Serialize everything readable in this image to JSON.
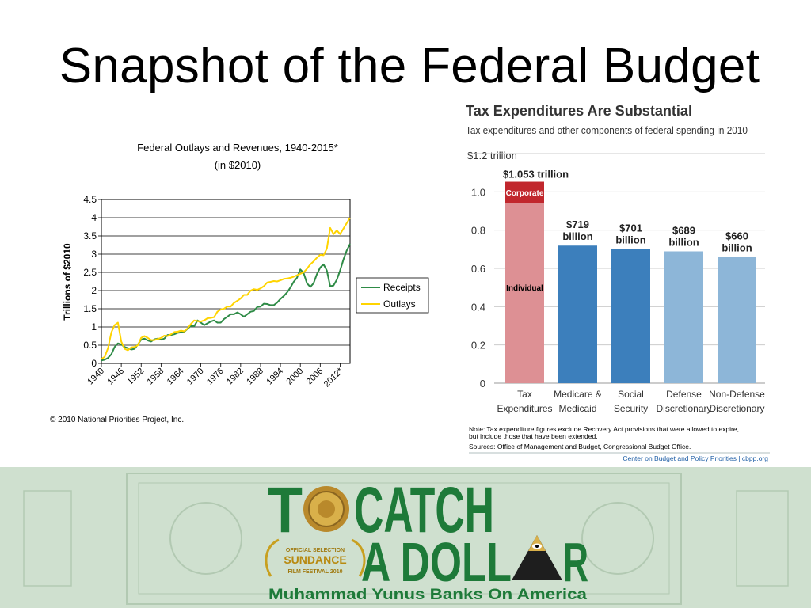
{
  "slide": {
    "title": "Snapshot of the Federal Budget"
  },
  "chart_data": [
    {
      "type": "line",
      "title": "Federal Outlays and Revenues, 1940-2015*",
      "subtitle": "(in $2010)",
      "xlabel": "",
      "ylabel": "Trillions of $2010",
      "ylim": [
        0,
        4.5
      ],
      "yticks": [
        "0",
        "0.5",
        "1",
        "1.5",
        "2",
        "2.5",
        "3",
        "3.5",
        "4",
        "4.5"
      ],
      "xticks": [
        "1940",
        "1946",
        "1952",
        "1958",
        "1964",
        "1970",
        "1976",
        "1982",
        "1988",
        "1994",
        "2000",
        "2006",
        "2012*"
      ],
      "grid": true,
      "legend": "right",
      "copyright": "© 2010 National Priorities Project, Inc.",
      "series": [
        {
          "name": "Receipts",
          "color": "#2e8b46",
          "points": [
            [
              1940,
              0.08
            ],
            [
              1941,
              0.1
            ],
            [
              1942,
              0.15
            ],
            [
              1943,
              0.25
            ],
            [
              1944,
              0.45
            ],
            [
              1945,
              0.55
            ],
            [
              1946,
              0.52
            ],
            [
              1947,
              0.45
            ],
            [
              1948,
              0.42
            ],
            [
              1949,
              0.38
            ],
            [
              1950,
              0.4
            ],
            [
              1951,
              0.52
            ],
            [
              1952,
              0.65
            ],
            [
              1953,
              0.68
            ],
            [
              1954,
              0.63
            ],
            [
              1955,
              0.6
            ],
            [
              1956,
              0.66
            ],
            [
              1957,
              0.68
            ],
            [
              1958,
              0.65
            ],
            [
              1959,
              0.68
            ],
            [
              1960,
              0.78
            ],
            [
              1961,
              0.78
            ],
            [
              1962,
              0.8
            ],
            [
              1963,
              0.84
            ],
            [
              1964,
              0.85
            ],
            [
              1965,
              0.87
            ],
            [
              1966,
              0.95
            ],
            [
              1967,
              1.03
            ],
            [
              1968,
              1.02
            ],
            [
              1969,
              1.18
            ],
            [
              1970,
              1.12
            ],
            [
              1971,
              1.05
            ],
            [
              1972,
              1.1
            ],
            [
              1973,
              1.15
            ],
            [
              1974,
              1.18
            ],
            [
              1975,
              1.12
            ],
            [
              1976,
              1.12
            ],
            [
              1977,
              1.22
            ],
            [
              1978,
              1.28
            ],
            [
              1979,
              1.35
            ],
            [
              1980,
              1.35
            ],
            [
              1981,
              1.4
            ],
            [
              1982,
              1.35
            ],
            [
              1983,
              1.28
            ],
            [
              1984,
              1.35
            ],
            [
              1985,
              1.42
            ],
            [
              1986,
              1.44
            ],
            [
              1987,
              1.55
            ],
            [
              1988,
              1.56
            ],
            [
              1989,
              1.64
            ],
            [
              1990,
              1.63
            ],
            [
              1991,
              1.6
            ],
            [
              1992,
              1.6
            ],
            [
              1993,
              1.67
            ],
            [
              1994,
              1.77
            ],
            [
              1995,
              1.85
            ],
            [
              1996,
              1.95
            ],
            [
              1997,
              2.08
            ],
            [
              1998,
              2.24
            ],
            [
              1999,
              2.35
            ],
            [
              2000,
              2.58
            ],
            [
              2001,
              2.48
            ],
            [
              2002,
              2.2
            ],
            [
              2003,
              2.1
            ],
            [
              2004,
              2.2
            ],
            [
              2005,
              2.45
            ],
            [
              2006,
              2.63
            ],
            [
              2007,
              2.72
            ],
            [
              2008,
              2.55
            ],
            [
              2009,
              2.12
            ],
            [
              2010,
              2.14
            ],
            [
              2011,
              2.3
            ],
            [
              2012,
              2.55
            ],
            [
              2013,
              2.85
            ],
            [
              2014,
              3.1
            ],
            [
              2015,
              3.28
            ]
          ]
        },
        {
          "name": "Outlays",
          "color": "#ffd400",
          "points": [
            [
              1940,
              0.12
            ],
            [
              1941,
              0.18
            ],
            [
              1942,
              0.42
            ],
            [
              1943,
              0.85
            ],
            [
              1944,
              1.05
            ],
            [
              1945,
              1.12
            ],
            [
              1946,
              0.6
            ],
            [
              1947,
              0.4
            ],
            [
              1948,
              0.36
            ],
            [
              1949,
              0.44
            ],
            [
              1950,
              0.45
            ],
            [
              1951,
              0.5
            ],
            [
              1952,
              0.7
            ],
            [
              1953,
              0.75
            ],
            [
              1954,
              0.7
            ],
            [
              1955,
              0.64
            ],
            [
              1956,
              0.64
            ],
            [
              1957,
              0.67
            ],
            [
              1958,
              0.7
            ],
            [
              1959,
              0.76
            ],
            [
              1960,
              0.75
            ],
            [
              1961,
              0.8
            ],
            [
              1962,
              0.86
            ],
            [
              1963,
              0.87
            ],
            [
              1964,
              0.9
            ],
            [
              1965,
              0.88
            ],
            [
              1966,
              0.96
            ],
            [
              1967,
              1.08
            ],
            [
              1968,
              1.18
            ],
            [
              1969,
              1.16
            ],
            [
              1970,
              1.15
            ],
            [
              1971,
              1.18
            ],
            [
              1972,
              1.24
            ],
            [
              1973,
              1.25
            ],
            [
              1974,
              1.27
            ],
            [
              1975,
              1.42
            ],
            [
              1976,
              1.48
            ],
            [
              1977,
              1.5
            ],
            [
              1978,
              1.56
            ],
            [
              1979,
              1.56
            ],
            [
              1980,
              1.66
            ],
            [
              1981,
              1.72
            ],
            [
              1982,
              1.78
            ],
            [
              1983,
              1.88
            ],
            [
              1984,
              1.88
            ],
            [
              1985,
              2.0
            ],
            [
              1986,
              2.04
            ],
            [
              1987,
              2.02
            ],
            [
              1988,
              2.06
            ],
            [
              1989,
              2.12
            ],
            [
              1990,
              2.22
            ],
            [
              1991,
              2.24
            ],
            [
              1992,
              2.26
            ],
            [
              1993,
              2.25
            ],
            [
              1994,
              2.28
            ],
            [
              1995,
              2.32
            ],
            [
              1996,
              2.33
            ],
            [
              1997,
              2.35
            ],
            [
              1998,
              2.38
            ],
            [
              1999,
              2.42
            ],
            [
              2000,
              2.46
            ],
            [
              2001,
              2.5
            ],
            [
              2002,
              2.6
            ],
            [
              2003,
              2.72
            ],
            [
              2004,
              2.8
            ],
            [
              2005,
              2.9
            ],
            [
              2006,
              2.98
            ],
            [
              2007,
              2.97
            ],
            [
              2008,
              3.15
            ],
            [
              2009,
              3.72
            ],
            [
              2010,
              3.55
            ],
            [
              2011,
              3.65
            ],
            [
              2012,
              3.55
            ],
            [
              2013,
              3.7
            ],
            [
              2014,
              3.85
            ],
            [
              2015,
              4.0
            ]
          ]
        }
      ]
    },
    {
      "type": "bar",
      "title": "Tax Expenditures Are Substantial",
      "subtitle": "Tax expenditures and other components of federal spending in 2010",
      "ylim": [
        0,
        1.2
      ],
      "top_gridline_label": "$1.2 trillion",
      "yticks": [
        "0",
        "0.2",
        "0.4",
        "0.6",
        "0.8",
        "1.0"
      ],
      "bars": [
        {
          "category": "Tax Expenditures",
          "value": 1.053,
          "label": "$1.053 trillion",
          "color": "#dd9094",
          "stack": [
            {
              "name": "Individual",
              "value": 0.94,
              "color": "#dd9094"
            },
            {
              "name": "Corporate",
              "value": 0.113,
              "color": "#c1272d"
            }
          ]
        },
        {
          "category": "Medicare & Medicaid",
          "value": 0.719,
          "label": "$719 billion",
          "color": "#3c7fbc"
        },
        {
          "category": "Social Security",
          "value": 0.701,
          "label": "$701 billion",
          "color": "#3c7fbc"
        },
        {
          "category": "Defense Discretionary",
          "value": 0.689,
          "label": "$689 billion",
          "color": "#8db6d8"
        },
        {
          "category": "Non-Defense Discretionary",
          "value": 0.66,
          "label": "$660 billion",
          "color": "#8db6d8"
        }
      ],
      "notes": [
        "Note: Tax expenditure figures exclude Recovery Act provisions that were allowed to expire,",
        "but include those that have been extended.",
        "Sources: Office of Management and Budget, Congressional Budget Office."
      ],
      "credit": "Center on Budget and Policy Priorities | cbpp.org"
    }
  ],
  "banner": {
    "line1": "T● CATCH",
    "line1_a": "T",
    "line1_b": "CATCH",
    "line2_a": "A DOLL",
    "line2_b": "R",
    "badge_top": "OFFICIAL SELECTION",
    "badge_mid": "SUNDANCE",
    "badge_bot": "FILM FESTIVAL 2010",
    "tagline": "Muhammad Yunus Banks On America",
    "bg": "#cfe0cf",
    "green": "#1e7a39",
    "gold": "#c8a020"
  }
}
